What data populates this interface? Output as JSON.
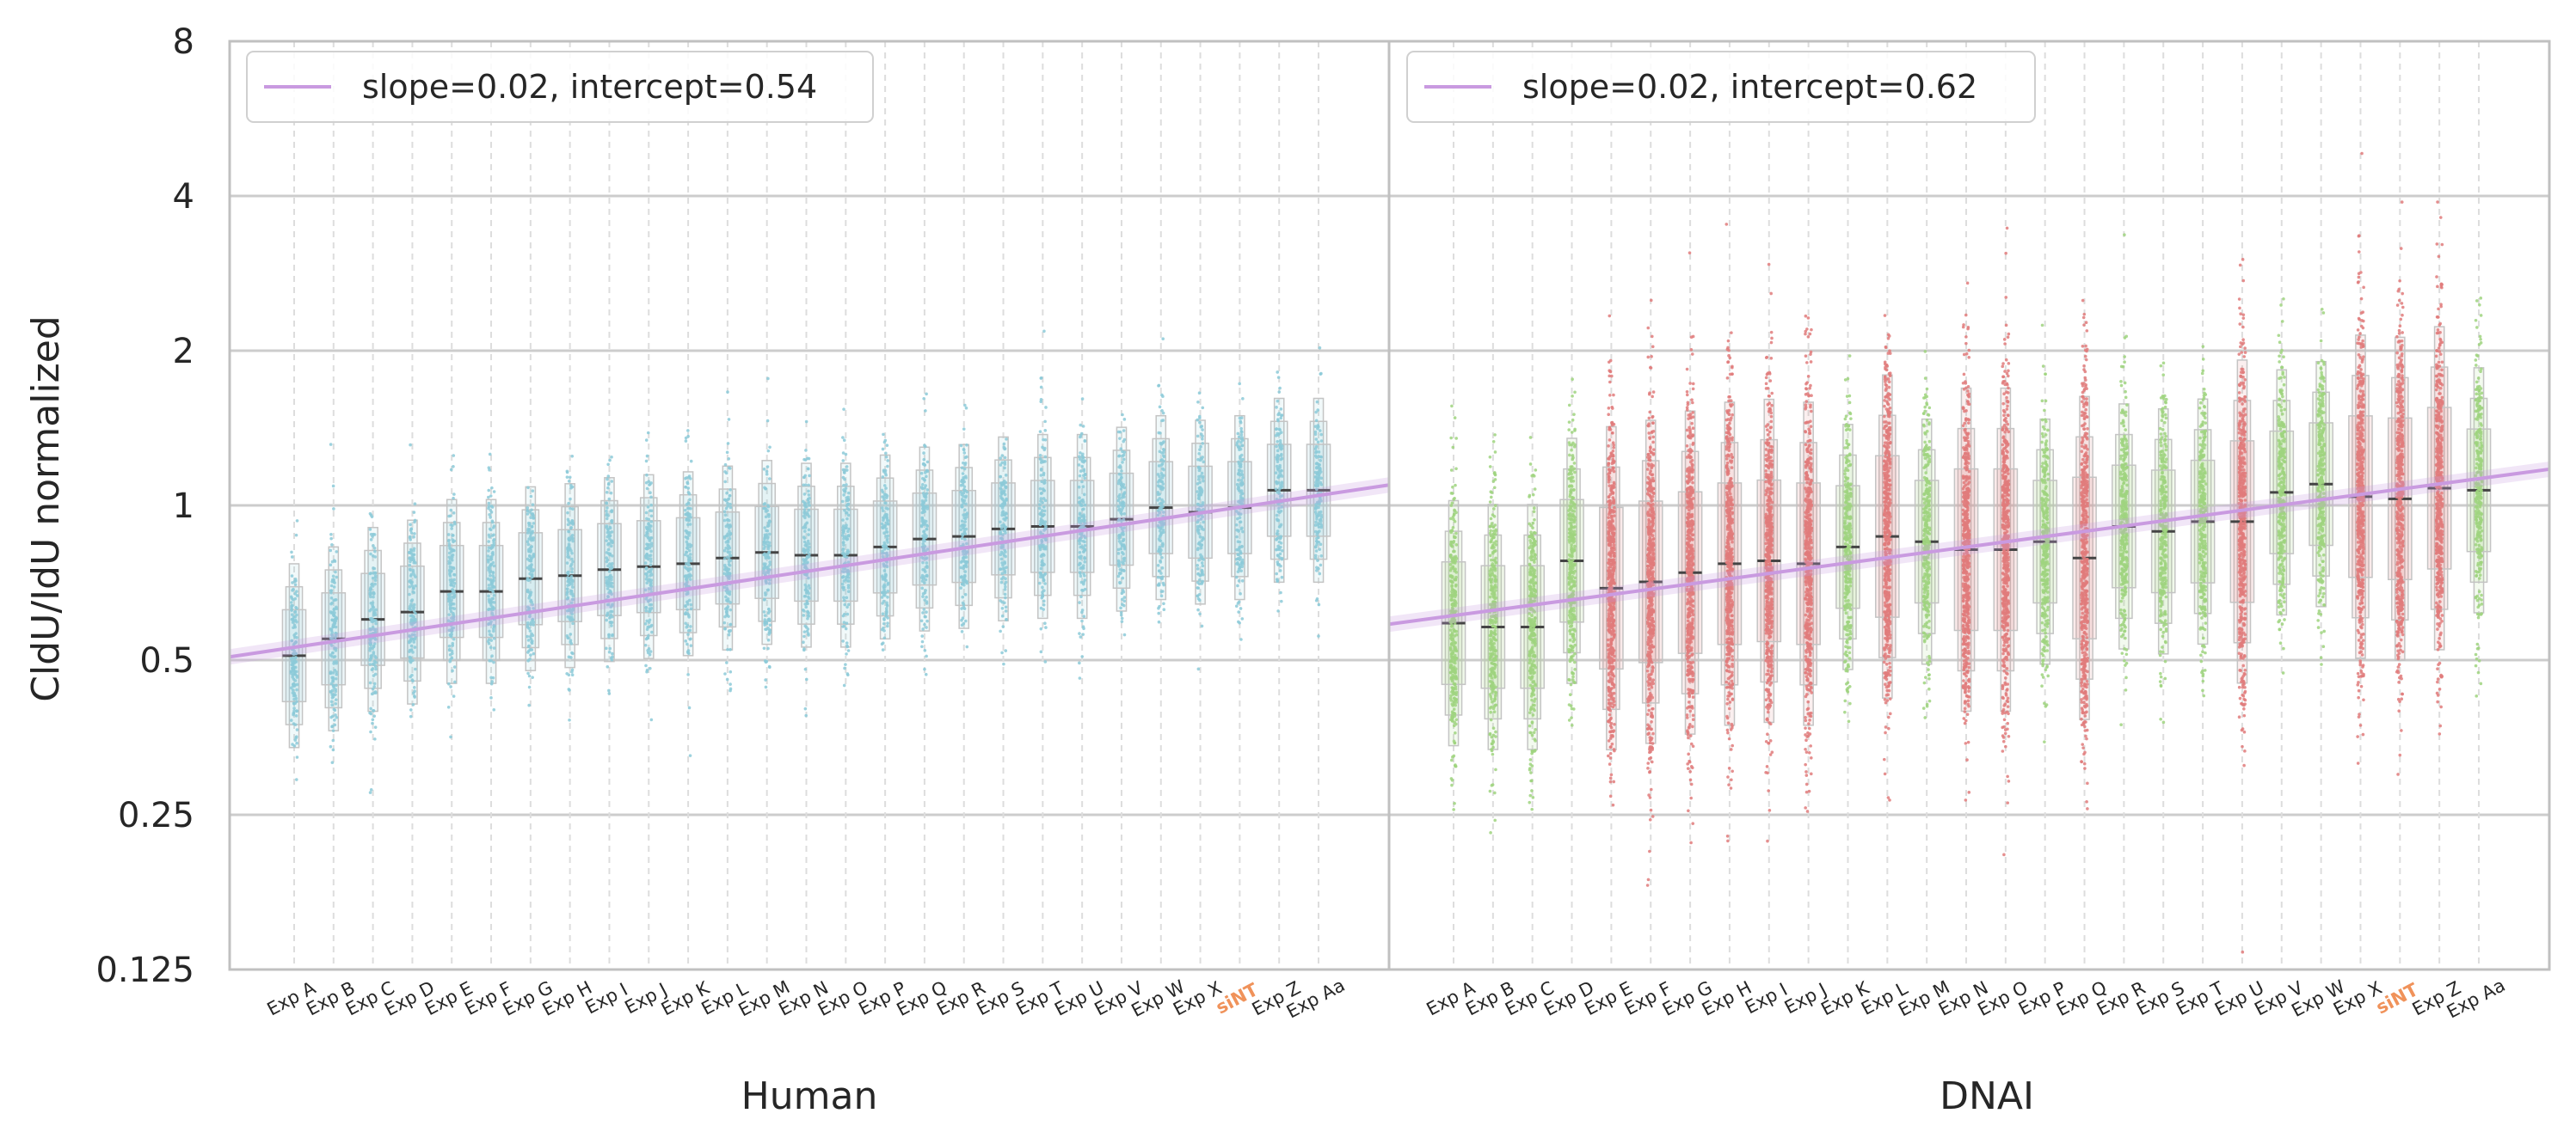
{
  "chart_data": {
    "type": "boxplot",
    "ylabel": "CldU/IdU normalized",
    "yscale": "log2",
    "ylim": [
      0.125,
      8
    ],
    "yticks": [
      0.125,
      0.25,
      0.5,
      1,
      2,
      4,
      8
    ],
    "ytick_labels": [
      "0.125",
      "0.25",
      "0.5",
      "1",
      "2",
      "4",
      "8"
    ],
    "grid": true,
    "colors": {
      "human": "#8ccad8",
      "dnai_green": "#9fd37f",
      "dnai_red": "#e07b7b",
      "regression": "#c99ae0",
      "highlight_label": "#f0925a",
      "median": "#444444"
    },
    "panels": [
      {
        "xlabel": "Human",
        "legend": {
          "label": "slope=0.02, intercept=0.54",
          "placement": "upper-left"
        },
        "regression": {
          "slope": 0.02,
          "intercept": 0.54
        },
        "categories": [
          "Exp A",
          "Exp B",
          "Exp C",
          "Exp D",
          "Exp E",
          "Exp F",
          "Exp G",
          "Exp H",
          "Exp I",
          "Exp J",
          "Exp K",
          "Exp L",
          "Exp M",
          "Exp N",
          "Exp O",
          "Exp P",
          "Exp Q",
          "Exp R",
          "Exp S",
          "Exp T",
          "Exp U",
          "Exp V",
          "Exp W",
          "Exp X",
          "siNT",
          "Exp Z",
          "Exp Aa"
        ],
        "highlight": [
          "siNT"
        ],
        "medians": [
          0.51,
          0.55,
          0.6,
          0.62,
          0.68,
          0.68,
          0.72,
          0.73,
          0.75,
          0.76,
          0.77,
          0.79,
          0.81,
          0.8,
          0.8,
          0.83,
          0.86,
          0.87,
          0.9,
          0.91,
          0.91,
          0.94,
          0.99,
          0.97,
          0.99,
          1.07,
          1.07
        ],
        "series_color": [
          "human",
          "human",
          "human",
          "human",
          "human",
          "human",
          "human",
          "human",
          "human",
          "human",
          "human",
          "human",
          "human",
          "human",
          "human",
          "human",
          "human",
          "human",
          "human",
          "human",
          "human",
          "human",
          "human",
          "human",
          "human",
          "human",
          "human"
        ]
      },
      {
        "xlabel": "DNAI",
        "legend": {
          "label": "slope=0.02, intercept=0.62",
          "placement": "upper-left"
        },
        "regression": {
          "slope": 0.02,
          "intercept": 0.62
        },
        "categories": [
          "Exp A",
          "Exp B",
          "Exp C",
          "Exp D",
          "Exp E",
          "Exp F",
          "Exp G",
          "Exp H",
          "Exp I",
          "Exp J",
          "Exp K",
          "Exp L",
          "Exp M",
          "Exp N",
          "Exp O",
          "Exp P",
          "Exp Q",
          "Exp R",
          "Exp S",
          "Exp T",
          "Exp U",
          "Exp V",
          "Exp W",
          "Exp X",
          "siNT",
          "Exp Z",
          "Exp Aa"
        ],
        "highlight": [
          "siNT"
        ],
        "medians": [
          0.59,
          0.58,
          0.58,
          0.78,
          0.69,
          0.71,
          0.74,
          0.77,
          0.78,
          0.77,
          0.83,
          0.87,
          0.85,
          0.82,
          0.82,
          0.85,
          0.79,
          0.91,
          0.89,
          0.93,
          0.93,
          1.06,
          1.1,
          1.04,
          1.03,
          1.08,
          1.07
        ],
        "series_color": [
          "dnai_green",
          "dnai_green",
          "dnai_green",
          "dnai_green",
          "dnai_red",
          "dnai_red",
          "dnai_red",
          "dnai_red",
          "dnai_red",
          "dnai_red",
          "dnai_green",
          "dnai_red",
          "dnai_green",
          "dnai_red",
          "dnai_red",
          "dnai_green",
          "dnai_red",
          "dnai_green",
          "dnai_green",
          "dnai_green",
          "dnai_red",
          "dnai_green",
          "dnai_green",
          "dnai_red",
          "dnai_red",
          "dnai_red",
          "dnai_green"
        ]
      }
    ]
  }
}
